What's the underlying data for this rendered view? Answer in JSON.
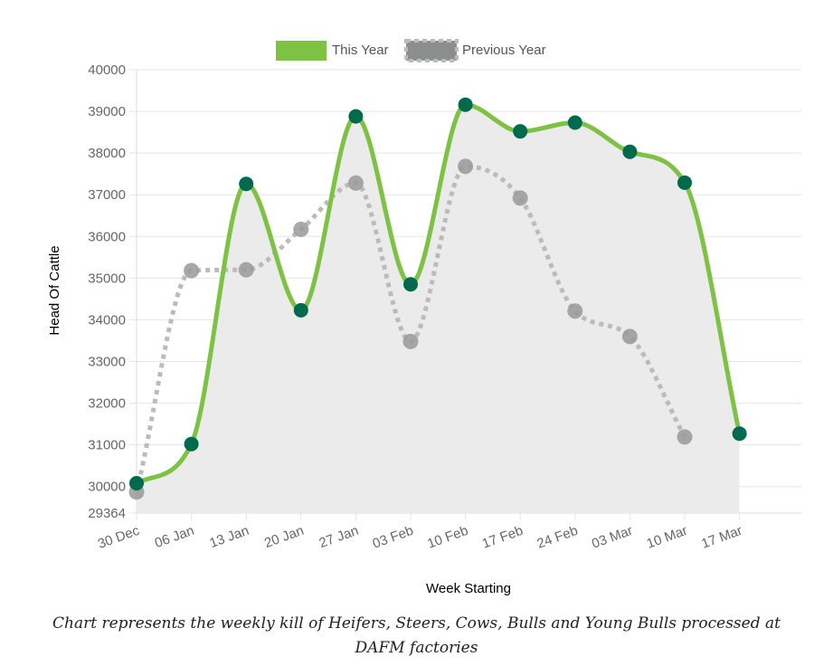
{
  "chart_data": {
    "type": "line",
    "categories": [
      "30 Dec",
      "06 Jan",
      "13 Jan",
      "20 Jan",
      "27 Jan",
      "03 Feb",
      "10 Feb",
      "17 Feb",
      "24 Feb",
      "03 Mar",
      "10 Mar",
      "17 Mar"
    ],
    "series": [
      {
        "name": "This Year",
        "color": "#7dc242",
        "point_color": "#006a4e",
        "fill": "#ebebeb",
        "values": [
          30080,
          31020,
          37260,
          34230,
          38880,
          34850,
          39160,
          38520,
          38730,
          38030,
          37290,
          31270
        ]
      },
      {
        "name": "Previous Year",
        "color": "#bbbbbb",
        "point_color": "#999999",
        "dashed": true,
        "values": [
          29870,
          35180,
          35200,
          36170,
          37280,
          33480,
          37680,
          36920,
          34210,
          33600,
          31190,
          null
        ]
      }
    ],
    "xlabel": "Week Starting",
    "ylabel": "Head Of Cattle",
    "ylim": [
      29364,
      40000
    ],
    "yticks": [
      29364,
      30000,
      31000,
      32000,
      33000,
      34000,
      35000,
      36000,
      37000,
      38000,
      39000,
      40000
    ],
    "grid": true,
    "legend_position": "top"
  },
  "caption": "Chart represents the weekly kill of Heifers, Steers, Cows, Bulls and Young Bulls processed at DAFM factories"
}
